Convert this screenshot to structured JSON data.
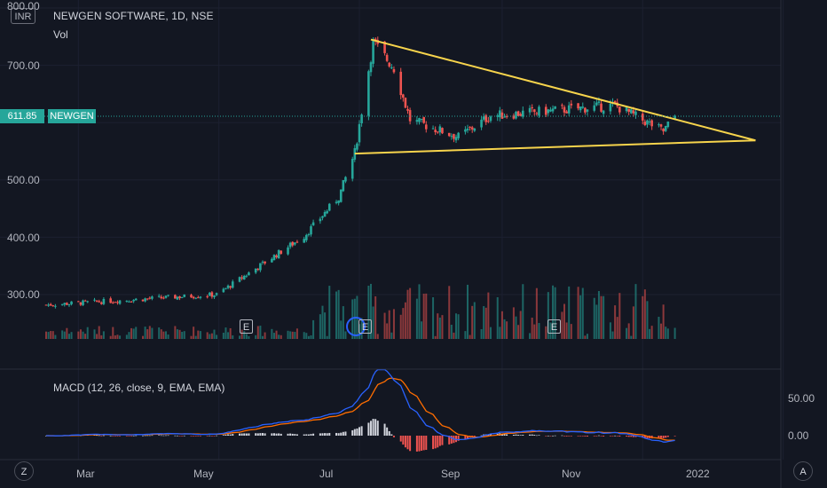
{
  "header": {
    "currency": "INR",
    "title": "NEWGEN SOFTWARE, 1D, NSE",
    "volume_label": "Vol"
  },
  "price_axis": {
    "top_partial": "800.00",
    "labels": [
      "700.00",
      "500.00",
      "400.00",
      "300.00"
    ]
  },
  "last_price": {
    "value": "611.85",
    "symbol": "NEWGEN"
  },
  "macd": {
    "title": "MACD (12, 26, close, 9, EMA, EMA)",
    "axis_labels": [
      "50.00",
      "0.00"
    ]
  },
  "time_axis": {
    "labels": [
      "Mar",
      "May",
      "Jul",
      "Sep",
      "Nov",
      "2022"
    ]
  },
  "earnings_label": "E",
  "corner_buttons": {
    "left": "Z",
    "right": "A"
  },
  "colors": {
    "background": "#131722",
    "up": "#26a69a",
    "down": "#ef5350",
    "trendline": "#f7d44c",
    "macd_line": "#2962ff",
    "signal_line": "#ff6d00",
    "text": "#b2b5be"
  },
  "chart_data": {
    "type": "candlestick",
    "ylim": [
      240,
      800
    ],
    "x": [
      "2021-02-15",
      "2021-12-31"
    ],
    "key_points": [
      {
        "date": "2021-02-15",
        "close": 282
      },
      {
        "date": "2021-04-30",
        "close": 300
      },
      {
        "date": "2021-06-07",
        "close": 402
      },
      {
        "date": "2021-06-22",
        "close": 470
      },
      {
        "date": "2021-06-29",
        "close": 548
      },
      {
        "date": "2021-07-07",
        "close": 740
      },
      {
        "date": "2021-07-16",
        "close": 695
      },
      {
        "date": "2021-07-23",
        "close": 605
      },
      {
        "date": "2021-08-13",
        "close": 575
      },
      {
        "date": "2021-08-27",
        "close": 612
      },
      {
        "date": "2021-10-20",
        "close": 630
      },
      {
        "date": "2021-11-10",
        "close": 585
      },
      {
        "date": "2021-11-15",
        "close": 611.85
      }
    ],
    "trendlines": [
      {
        "from": {
          "date": "2021-07-06",
          "price": 745
        },
        "to": {
          "date": "2021-12-20",
          "price": 569
        }
      },
      {
        "from": {
          "date": "2021-06-29",
          "price": 546
        },
        "to": {
          "date": "2021-12-20",
          "price": 569
        }
      }
    ],
    "earnings_dates": [
      "2021-06-10",
      "2021-07-20",
      "2021-10-25"
    ]
  }
}
